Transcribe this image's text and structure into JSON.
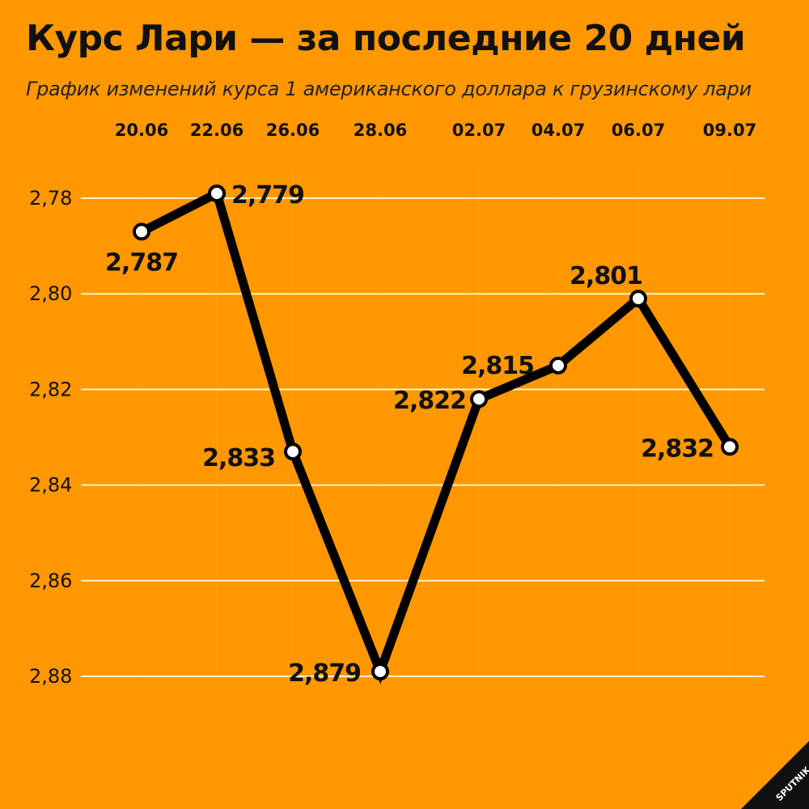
{
  "header": {
    "title": "Курс Лари — за последние 20 дней",
    "subtitle": "График изменений курса 1 американского доллара к грузинскому лари"
  },
  "brand": {
    "name": "SPUTNIK",
    "background": "#FF9800",
    "line_color": "#000000",
    "grid_color": "#FFF3C4"
  },
  "chart_data": {
    "type": "line",
    "title": "Курс Лари — за последние 20 дней",
    "subtitle": "График изменений курса 1 американского доллара к грузинскому лари",
    "categories": [
      "20.06",
      "22.06",
      "26.06",
      "28.06",
      "02.07",
      "04.07",
      "06.07",
      "09.07"
    ],
    "values": [
      2.787,
      2.779,
      2.833,
      2.879,
      2.822,
      2.815,
      2.801,
      2.832
    ],
    "data_labels": [
      "2,787",
      "2,779",
      "2,833",
      "2,879",
      "2,822",
      "2,815",
      "2,801",
      "2,832"
    ],
    "y_ticks": [
      2.78,
      2.8,
      2.82,
      2.84,
      2.86,
      2.88
    ],
    "y_tick_labels": [
      "2,78",
      "2,80",
      "2,82",
      "2,84",
      "2,86",
      "2,88"
    ],
    "ylim": [
      2.78,
      2.88
    ],
    "y_inverted": true,
    "x_axis_position": "top",
    "grid": true,
    "legend": "none"
  }
}
